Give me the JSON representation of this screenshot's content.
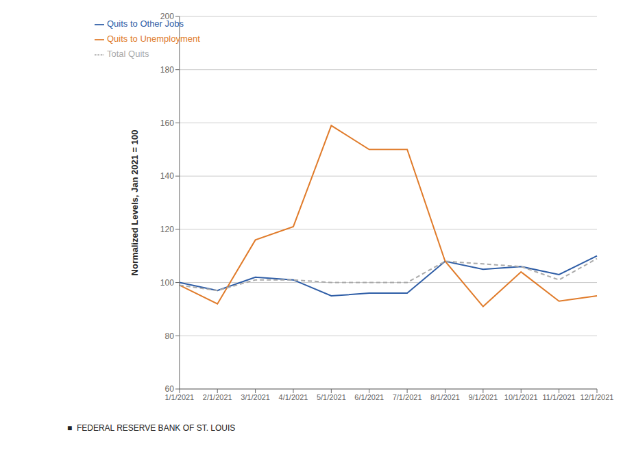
{
  "chart_data": {
    "type": "line",
    "y_label": "Normalized Levels, Jan 2021 = 100",
    "categories": [
      "1/1/2021",
      "2/1/2021",
      "3/1/2021",
      "4/1/2021",
      "5/1/2021",
      "6/1/2021",
      "7/1/2021",
      "8/1/2021",
      "9/1/2021",
      "10/1/2021",
      "11/1/2021",
      "12/1/2021"
    ],
    "series": [
      {
        "name": "Quits to Other Jobs",
        "color": "#2E5DA6",
        "line_style": "solid",
        "values": [
          100,
          97,
          102,
          101,
          95,
          96,
          96,
          108,
          105,
          106,
          103,
          110
        ]
      },
      {
        "name": "Quits to Unemployment",
        "color": "#E07B2A",
        "line_style": "solid",
        "values": [
          99,
          92,
          116,
          121,
          159,
          150,
          150,
          108,
          91,
          104,
          93,
          95
        ]
      },
      {
        "name": "Total Quits",
        "color": "#AAAAAA",
        "line_style": "dashed",
        "values": [
          99,
          97,
          101,
          101,
          100,
          100,
          100,
          108,
          107,
          106,
          101,
          109
        ]
      }
    ],
    "ylim": [
      60,
      200
    ],
    "yticks": [
      60,
      80,
      100,
      120,
      140,
      160,
      180,
      200
    ],
    "grid": "y",
    "legend": "upper left",
    "annotations": [
      "■  FEDERAL RESERVE BANK OF ST. LOUIS"
    ]
  }
}
